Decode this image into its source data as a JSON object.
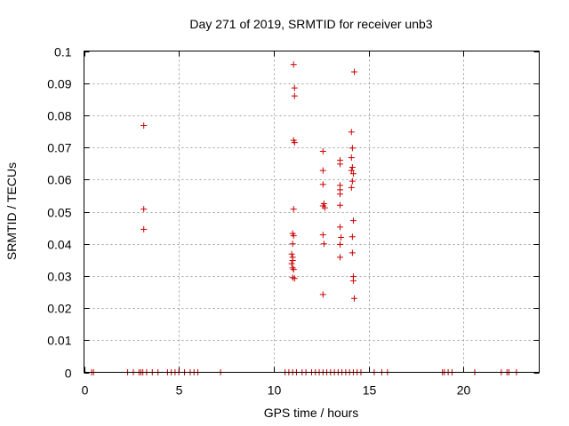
{
  "chart_data": {
    "type": "scatter",
    "title": "Day 271 of 2019, SRMTID for receiver unb3",
    "xlabel": "GPS time / hours",
    "ylabel": "SRMTID / TECUs",
    "xlim": [
      0,
      24
    ],
    "ylim": [
      0,
      0.1
    ],
    "x_ticks": [
      0,
      5,
      10,
      15,
      20
    ],
    "y_ticks": [
      0,
      0.01,
      0.02,
      0.03,
      0.04,
      0.05,
      0.06,
      0.07,
      0.08,
      0.09,
      0.1
    ],
    "x_tick_labels": [
      "0",
      "5",
      "10",
      "15",
      "20"
    ],
    "y_tick_labels": [
      "0",
      "0.01",
      "0.02",
      "0.03",
      "0.04",
      "0.05",
      "0.06",
      "0.07",
      "0.08",
      "0.09",
      "0.1"
    ],
    "grid": true,
    "marker": "+",
    "color": "#cc0000",
    "series": [
      {
        "name": "SRMTID",
        "points": [
          [
            0.4,
            0
          ],
          [
            0.5,
            0
          ],
          [
            2.3,
            0
          ],
          [
            2.6,
            0
          ],
          [
            2.9,
            0
          ],
          [
            3.0,
            0
          ],
          [
            3.1,
            0
          ],
          [
            3.3,
            0
          ],
          [
            3.6,
            0
          ],
          [
            3.9,
            0
          ],
          [
            4.4,
            0
          ],
          [
            4.6,
            0
          ],
          [
            4.8,
            0
          ],
          [
            5.0,
            0
          ],
          [
            5.3,
            0
          ],
          [
            5.6,
            0
          ],
          [
            5.8,
            0
          ],
          [
            6.0,
            0
          ],
          [
            7.2,
            0
          ],
          [
            10.6,
            0
          ],
          [
            10.8,
            0
          ],
          [
            11.0,
            0
          ],
          [
            11.2,
            0
          ],
          [
            11.5,
            0
          ],
          [
            11.7,
            0
          ],
          [
            12.0,
            0
          ],
          [
            12.2,
            0
          ],
          [
            12.4,
            0
          ],
          [
            12.6,
            0
          ],
          [
            12.8,
            0
          ],
          [
            13.0,
            0
          ],
          [
            13.2,
            0
          ],
          [
            13.4,
            0
          ],
          [
            13.6,
            0
          ],
          [
            13.8,
            0
          ],
          [
            14.0,
            0
          ],
          [
            14.2,
            0
          ],
          [
            14.4,
            0
          ],
          [
            14.6,
            0
          ],
          [
            15.3,
            0
          ],
          [
            15.7,
            0
          ],
          [
            16.0,
            0
          ],
          [
            18.9,
            0
          ],
          [
            19.0,
            0
          ],
          [
            19.2,
            0
          ],
          [
            19.4,
            0
          ],
          [
            20.6,
            0
          ],
          [
            22.0,
            0
          ],
          [
            22.3,
            0
          ],
          [
            22.4,
            0
          ],
          [
            22.8,
            0
          ],
          [
            3.15,
            0.0768
          ],
          [
            3.15,
            0.0508
          ],
          [
            3.15,
            0.0445
          ],
          [
            11.05,
            0.0958
          ],
          [
            11.1,
            0.0885
          ],
          [
            11.1,
            0.086
          ],
          [
            11.05,
            0.0722
          ],
          [
            11.1,
            0.0715
          ],
          [
            11.05,
            0.0508
          ],
          [
            11.0,
            0.0432
          ],
          [
            11.05,
            0.0425
          ],
          [
            11.0,
            0.04
          ],
          [
            10.95,
            0.0368
          ],
          [
            11.0,
            0.0358
          ],
          [
            11.0,
            0.0348
          ],
          [
            10.95,
            0.0338
          ],
          [
            11.0,
            0.0325
          ],
          [
            11.05,
            0.032
          ],
          [
            11.0,
            0.0295
          ],
          [
            11.1,
            0.0292
          ],
          [
            12.6,
            0.0688
          ],
          [
            12.6,
            0.0628
          ],
          [
            12.6,
            0.0585
          ],
          [
            12.65,
            0.0525
          ],
          [
            12.6,
            0.0518
          ],
          [
            12.7,
            0.0512
          ],
          [
            12.6,
            0.0428
          ],
          [
            12.65,
            0.04
          ],
          [
            12.6,
            0.0242
          ],
          [
            13.5,
            0.066
          ],
          [
            13.5,
            0.0648
          ],
          [
            13.5,
            0.0582
          ],
          [
            13.5,
            0.0568
          ],
          [
            13.5,
            0.0555
          ],
          [
            13.5,
            0.052
          ],
          [
            13.5,
            0.0452
          ],
          [
            13.55,
            0.042
          ],
          [
            13.5,
            0.0398
          ],
          [
            13.5,
            0.0358
          ],
          [
            14.25,
            0.0935
          ],
          [
            14.1,
            0.0748
          ],
          [
            14.15,
            0.0698
          ],
          [
            14.1,
            0.0668
          ],
          [
            14.15,
            0.0638
          ],
          [
            14.1,
            0.0628
          ],
          [
            14.2,
            0.0618
          ],
          [
            14.15,
            0.0595
          ],
          [
            14.1,
            0.0575
          ],
          [
            14.2,
            0.0472
          ],
          [
            14.15,
            0.0422
          ],
          [
            14.15,
            0.0372
          ],
          [
            14.2,
            0.0298
          ],
          [
            14.2,
            0.0285
          ],
          [
            14.25,
            0.023
          ]
        ]
      }
    ]
  }
}
